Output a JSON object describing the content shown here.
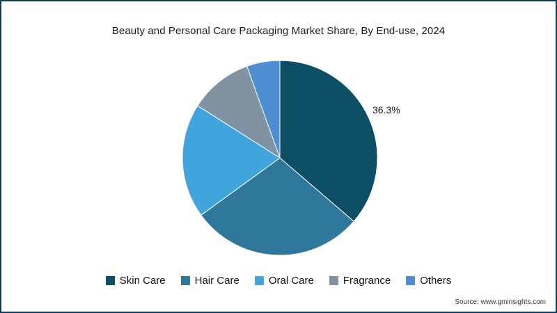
{
  "title": "Beauty and Personal Care Packaging Market Share, By End-use, 2024",
  "source": "Source: www.gminsights.com",
  "chart_data": {
    "type": "pie",
    "title": "Beauty and Personal Care Packaging Market Share, By End-use, 2024",
    "categories": [
      "Skin Care",
      "Hair Care",
      "Oral Care",
      "Fragrance",
      "Others"
    ],
    "values": [
      36.3,
      28.7,
      19.0,
      10.5,
      5.5
    ],
    "colors": [
      "#0c4e63",
      "#30789b",
      "#41a4dd",
      "#8093a3",
      "#4e8fd4"
    ],
    "data_label": {
      "slice": "Skin Care",
      "text": "36.3%"
    },
    "legend_position": "bottom",
    "start_angle_deg": 0,
    "direction": "clockwise",
    "background": "#ffffff",
    "border_color": "#0d3c59"
  }
}
